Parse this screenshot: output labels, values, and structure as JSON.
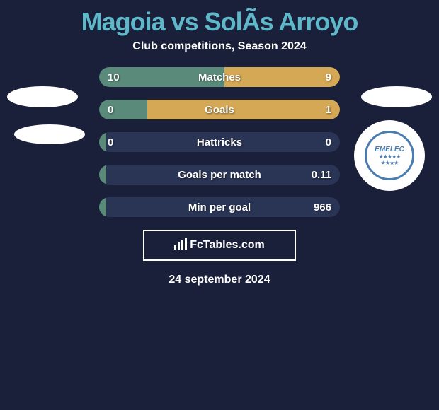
{
  "title": "Magoia vs SolÃs Arroyo",
  "subtitle": "Club competitions, Season 2024",
  "date": "24 september 2024",
  "fctables_label": "FcTables.com",
  "background_color": "#1a1f3a",
  "title_color": "#5fb8c9",
  "text_color": "#ffffff",
  "bar_bg_color": "#2a3555",
  "left_fill_color": "#5a8a7a",
  "right_fill_color": "#d4a855",
  "stats": [
    {
      "label": "Matches",
      "left_value": "10",
      "right_value": "9",
      "left_pct": 52,
      "right_pct": 48
    },
    {
      "label": "Goals",
      "left_value": "0",
      "right_value": "1",
      "left_pct": 20,
      "right_pct": 80
    },
    {
      "label": "Hattricks",
      "left_value": "0",
      "right_value": "0",
      "left_pct": 3,
      "right_pct": 0
    },
    {
      "label": "Goals per match",
      "left_value": "",
      "right_value": "0.11",
      "left_pct": 3,
      "right_pct": 0
    },
    {
      "label": "Min per goal",
      "left_value": "",
      "right_value": "966",
      "left_pct": 3,
      "right_pct": 0
    }
  ],
  "emelec_label": "EMELEC"
}
